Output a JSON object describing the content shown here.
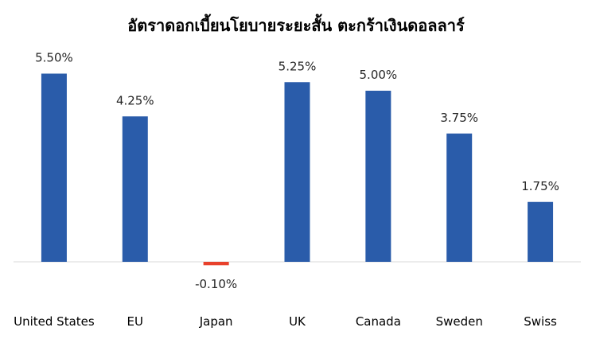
{
  "chart_data": {
    "type": "bar",
    "title": "อัตราดอกเบี้ยนโยบายระยะสั้น ตะกร้าเงินดอลลาร์",
    "categories": [
      "United States",
      "EU",
      "Japan",
      "UK",
      "Canada",
      "Sweden",
      "Swiss"
    ],
    "values": [
      5.5,
      4.25,
      -0.1,
      5.25,
      5.0,
      3.75,
      1.75
    ],
    "data_labels": [
      "5.50%",
      "4.25%",
      "-0.10%",
      "5.25%",
      "5.00%",
      "3.75%",
      "1.75%"
    ],
    "colors": {
      "positive": "#2a5caa",
      "negative": "#e8412c",
      "axis": "#d9d9d9"
    },
    "grid": false,
    "legend": "none"
  }
}
